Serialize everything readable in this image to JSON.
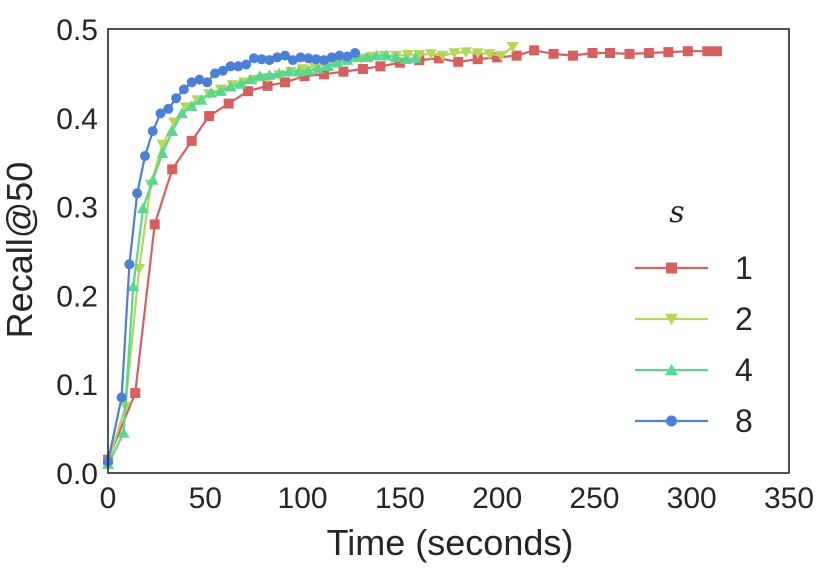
{
  "chart_data": {
    "type": "line",
    "title": "",
    "xlabel": "Time (seconds)",
    "ylabel": "Recall@50",
    "xlim": [
      0,
      350
    ],
    "ylim": [
      0.0,
      0.5
    ],
    "xticks": [
      0,
      50,
      100,
      150,
      200,
      250,
      300,
      350
    ],
    "yticks": [
      0.0,
      0.1,
      0.2,
      0.3,
      0.4,
      0.5
    ],
    "xtick_labels": [
      "0",
      "50",
      "100",
      "150",
      "200",
      "250",
      "300",
      "350"
    ],
    "ytick_labels": [
      "0.0",
      "0.1",
      "0.2",
      "0.3",
      "0.4",
      "0.5"
    ],
    "grid": false,
    "legend": {
      "title": "s",
      "placement": "right"
    },
    "series": [
      {
        "name": "1",
        "color": "#d65f5f",
        "marker": "square",
        "x": [
          0,
          14,
          24,
          33,
          43,
          52,
          62,
          72,
          82,
          91,
          101,
          111,
          121,
          131,
          140,
          150,
          160,
          170,
          180,
          190,
          200,
          210,
          219,
          229,
          239,
          249,
          258,
          268,
          278,
          288,
          298,
          308,
          313
        ],
        "y": [
          0.015,
          0.09,
          0.28,
          0.342,
          0.374,
          0.402,
          0.416,
          0.43,
          0.436,
          0.44,
          0.447,
          0.449,
          0.452,
          0.455,
          0.458,
          0.462,
          0.465,
          0.467,
          0.463,
          0.466,
          0.468,
          0.47,
          0.476,
          0.472,
          0.47,
          0.473,
          0.473,
          0.472,
          0.473,
          0.474,
          0.475,
          0.475,
          0.475
        ]
      },
      {
        "name": "2",
        "color": "#b5d65a",
        "marker": "triangle-down",
        "x": [
          0,
          9,
          16,
          22,
          28,
          34,
          40,
          46,
          52,
          58,
          64,
          70,
          76,
          82,
          88,
          94,
          100,
          106,
          112,
          118,
          124,
          130,
          136,
          142,
          148,
          154,
          160,
          166,
          172,
          178,
          184,
          190,
          196,
          202,
          208
        ],
        "y": [
          0.012,
          0.075,
          0.23,
          0.325,
          0.37,
          0.395,
          0.412,
          0.42,
          0.427,
          0.432,
          0.437,
          0.44,
          0.443,
          0.445,
          0.448,
          0.452,
          0.455,
          0.458,
          0.46,
          0.463,
          0.466,
          0.467,
          0.469,
          0.47,
          0.47,
          0.471,
          0.471,
          0.472,
          0.47,
          0.473,
          0.474,
          0.473,
          0.472,
          0.47,
          0.48
        ]
      },
      {
        "name": "4",
        "color": "#5ad690",
        "marker": "triangle-up",
        "x": [
          0,
          8,
          13,
          18,
          23,
          28,
          33,
          38,
          43,
          48,
          53,
          58,
          63,
          68,
          73,
          78,
          83,
          88,
          93,
          98,
          103,
          108,
          113,
          118,
          123,
          128,
          133,
          138,
          143,
          148,
          153,
          158
        ],
        "y": [
          0.01,
          0.045,
          0.21,
          0.298,
          0.33,
          0.36,
          0.385,
          0.405,
          0.413,
          0.42,
          0.428,
          0.43,
          0.435,
          0.438,
          0.443,
          0.447,
          0.448,
          0.45,
          0.452,
          0.452,
          0.453,
          0.455,
          0.458,
          0.462,
          0.465,
          0.468,
          0.468,
          0.47,
          0.47,
          0.468,
          0.466,
          0.467
        ]
      },
      {
        "name": "8",
        "color": "#4c7fd6",
        "marker": "circle",
        "x": [
          0,
          7,
          11,
          15,
          19,
          23,
          27,
          31,
          35,
          39,
          43,
          47,
          51,
          55,
          59,
          63,
          67,
          71,
          75,
          79,
          83,
          87,
          91,
          95,
          99,
          103,
          107,
          111,
          115,
          119,
          123,
          127
        ],
        "y": [
          0.013,
          0.085,
          0.235,
          0.315,
          0.357,
          0.385,
          0.405,
          0.41,
          0.422,
          0.432,
          0.44,
          0.443,
          0.44,
          0.45,
          0.453,
          0.458,
          0.458,
          0.46,
          0.467,
          0.466,
          0.465,
          0.468,
          0.47,
          0.465,
          0.468,
          0.467,
          0.466,
          0.465,
          0.468,
          0.47,
          0.469,
          0.473
        ]
      }
    ]
  }
}
